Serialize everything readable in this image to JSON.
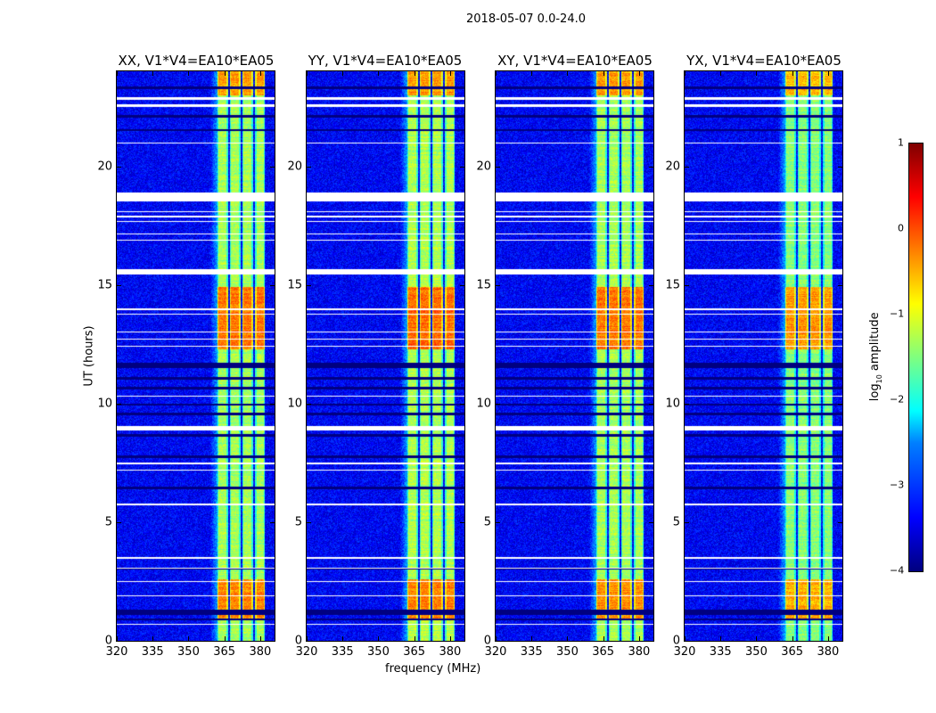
{
  "chart_data": {
    "type": "heatmap",
    "title": "2018-05-07 0.0-24.0",
    "xlabel": "frequency (MHz)",
    "ylabel": "UT (hours)",
    "xlim": [
      320,
      386
    ],
    "ylim": [
      0,
      24
    ],
    "xticks": [
      "320",
      "335",
      "350",
      "365",
      "380"
    ],
    "xtick_values": [
      320,
      335,
      350,
      365,
      380
    ],
    "yticks": [
      "0",
      "5",
      "10",
      "15",
      "20"
    ],
    "ytick_values": [
      0,
      5,
      10,
      15,
      20
    ],
    "panels": [
      {
        "title": "XX, V1*V4=EA10*EA05",
        "level_offset": 0
      },
      {
        "title": "YY, V1*V4=EA10*EA05",
        "level_offset": 0.05
      },
      {
        "title": "XY, V1*V4=EA10*EA05",
        "level_offset": 0
      },
      {
        "title": "YX, V1*V4=EA10*EA05",
        "level_offset": -0.15
      }
    ],
    "colorbar": {
      "label": "log10 amplitude",
      "label_main": "log",
      "label_sub": "10",
      "label_rest": " amplitude",
      "colormap": "jet",
      "range": [
        -4,
        1
      ],
      "ticks": [
        "1",
        "0",
        "−1",
        "−2",
        "−3",
        "−4"
      ],
      "tick_values": [
        1,
        0,
        -1,
        -2,
        -3,
        -4
      ]
    },
    "background_level": -3.4,
    "band_level": -1.3,
    "subbands_mhz": [
      [
        362,
        366.5
      ],
      [
        367.3,
        371.8
      ],
      [
        372.5,
        377
      ],
      [
        377.8,
        382
      ]
    ],
    "bright_periods_hours": [
      [
        0.9,
        2.6,
        -0.3
      ],
      [
        12.3,
        14.9,
        -0.2
      ],
      [
        23.0,
        24.0,
        -0.4
      ]
    ],
    "flagged_white_hours": [
      [
        22.5,
        22.6
      ],
      [
        22.8,
        22.9
      ],
      [
        20.95,
        21.0
      ],
      [
        18.5,
        18.9
      ],
      [
        18.05,
        18.1
      ],
      [
        17.85,
        17.9
      ],
      [
        17.65,
        17.7
      ],
      [
        17.12,
        17.17
      ],
      [
        16.85,
        16.9
      ],
      [
        15.45,
        15.65
      ],
      [
        13.95,
        14.0
      ],
      [
        13.75,
        13.8
      ],
      [
        12.98,
        13.03
      ],
      [
        12.68,
        12.73
      ],
      [
        12.38,
        12.43
      ],
      [
        10.28,
        10.33
      ],
      [
        8.85,
        9.05
      ],
      [
        7.45,
        7.5
      ],
      [
        7.18,
        7.23
      ],
      [
        5.72,
        5.77
      ],
      [
        3.47,
        3.52
      ],
      [
        3.03,
        3.08
      ],
      [
        2.48,
        2.53
      ],
      [
        1.88,
        1.93
      ],
      [
        0.68,
        0.73
      ]
    ],
    "flagged_dark_hours": [
      [
        23.25,
        23.35
      ],
      [
        22.05,
        22.15
      ],
      [
        21.5,
        21.55
      ],
      [
        11.5,
        11.7
      ],
      [
        11.0,
        11.1
      ],
      [
        10.6,
        10.7
      ],
      [
        9.9,
        10.0
      ],
      [
        9.5,
        9.6
      ],
      [
        8.6,
        8.7
      ],
      [
        7.7,
        7.8
      ],
      [
        6.4,
        6.5
      ],
      [
        3.0,
        3.03
      ],
      [
        1.1,
        1.3
      ],
      [
        0.85,
        0.95
      ]
    ]
  }
}
